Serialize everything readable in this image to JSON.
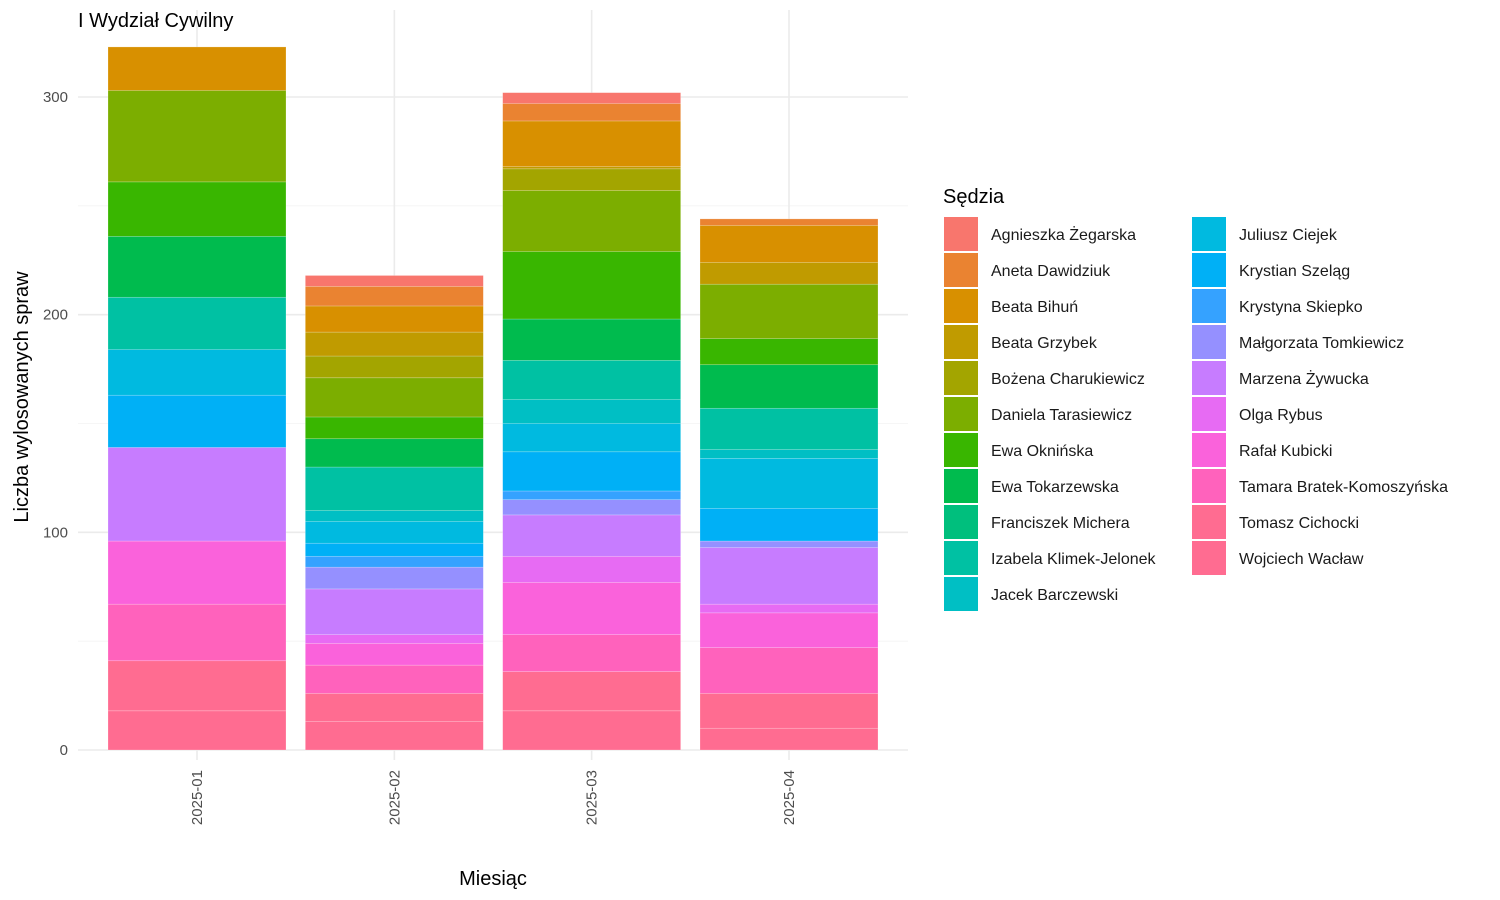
{
  "chart_data": {
    "type": "bar",
    "stacked": true,
    "title": "I Wydział Cywilny",
    "xlabel": "Miesiąc",
    "ylabel": "Liczba wylosowanych spraw",
    "ylim": [
      0,
      330
    ],
    "yticks": [
      0,
      100,
      200,
      300
    ],
    "grid": true,
    "legend_title": "Sędzia",
    "legend_position": "right",
    "categories": [
      "2025-01",
      "2025-02",
      "2025-03",
      "2025-04"
    ],
    "series": [
      {
        "name": "Agnieszka Żegarska",
        "color": "#F8766D",
        "values": [
          0,
          5,
          5,
          0
        ]
      },
      {
        "name": "Aneta Dawidziuk",
        "color": "#EA8331",
        "values": [
          0,
          9,
          8,
          3
        ]
      },
      {
        "name": "Beata Bihuń",
        "color": "#D89000",
        "values": [
          20,
          12,
          21,
          17
        ]
      },
      {
        "name": "Beata Grzybek",
        "color": "#C09B00",
        "values": [
          0,
          11,
          1,
          10
        ]
      },
      {
        "name": "Bożena Charukiewicz",
        "color": "#A3A500",
        "values": [
          0,
          10,
          10,
          0
        ]
      },
      {
        "name": "Daniela Tarasiewicz",
        "color": "#7CAE00",
        "values": [
          42,
          18,
          28,
          25
        ]
      },
      {
        "name": "Ewa Oknińska",
        "color": "#39B600",
        "values": [
          25,
          10,
          31,
          12
        ]
      },
      {
        "name": "Ewa Tokarzewska",
        "color": "#00BB4E",
        "values": [
          28,
          13,
          19,
          20
        ]
      },
      {
        "name": "Franciszek Michera",
        "color": "#00BF7D",
        "values": [
          0,
          0,
          0,
          0
        ]
      },
      {
        "name": "Izabela Klimek-Jelonek",
        "color": "#00C1A3",
        "values": [
          24,
          20,
          18,
          19
        ]
      },
      {
        "name": "Jacek Barczewski",
        "color": "#00BFC4",
        "values": [
          0,
          5,
          11,
          4
        ]
      },
      {
        "name": "Juliusz Ciejek",
        "color": "#00BAE0",
        "values": [
          21,
          10,
          13,
          23
        ]
      },
      {
        "name": "Krystian Szeląg",
        "color": "#00B0F6",
        "values": [
          24,
          6,
          18,
          15
        ]
      },
      {
        "name": "Krystyna Skiepko",
        "color": "#35A2FF",
        "values": [
          0,
          5,
          4,
          0
        ]
      },
      {
        "name": "Małgorzata Tomkiewicz",
        "color": "#9590FF",
        "values": [
          0,
          10,
          7,
          3
        ]
      },
      {
        "name": "Marzena Żywucka",
        "color": "#C77CFF",
        "values": [
          43,
          21,
          19,
          26
        ]
      },
      {
        "name": "Olga Rybus",
        "color": "#E76BF3",
        "values": [
          0,
          4,
          12,
          4
        ]
      },
      {
        "name": "Rafał Kubicki",
        "color": "#FA62DB",
        "values": [
          29,
          10,
          24,
          16
        ]
      },
      {
        "name": "Tamara Bratek-Komoszyńska",
        "color": "#FF62BC",
        "values": [
          26,
          13,
          17,
          21
        ]
      },
      {
        "name": "Tomasz Cichocki",
        "color": "#FF6C91",
        "values": [
          23,
          13,
          18,
          16
        ]
      },
      {
        "name": "Wojciech Wacław",
        "color": "#FF6C91",
        "values": [
          18,
          13,
          18,
          10
        ]
      }
    ]
  }
}
